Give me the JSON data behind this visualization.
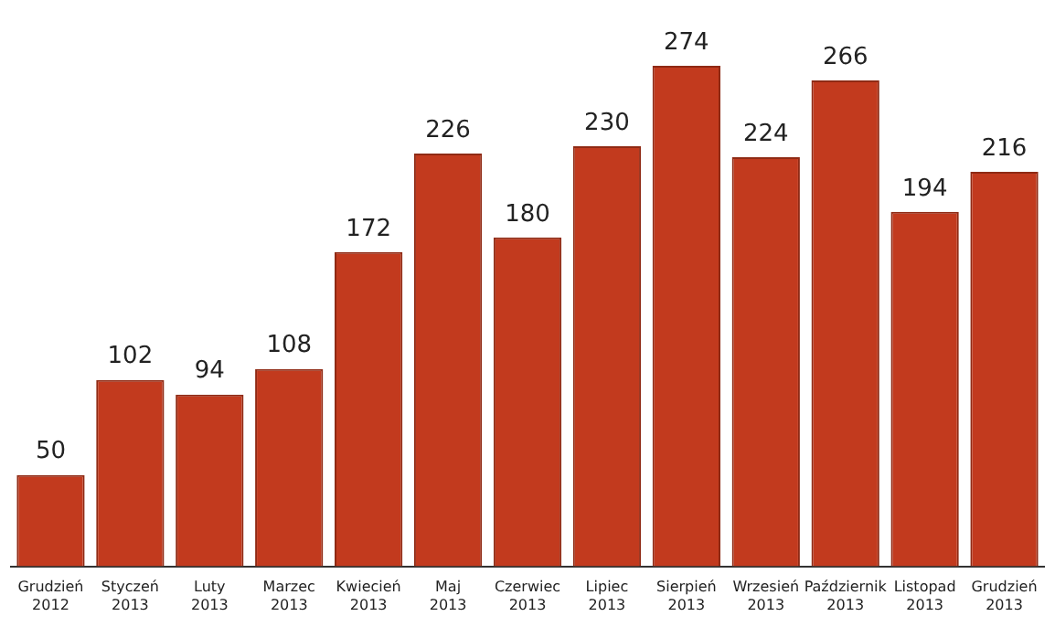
{
  "chart_data": {
    "type": "bar",
    "categories": [
      "Grudzień 2012",
      "Styczeń 2013",
      "Luty 2013",
      "Marzec 2013",
      "Kwiecień 2013",
      "Maj 2013",
      "Czerwiec 2013",
      "Lipiec 2013",
      "Sierpień 2013",
      "Wrzesień 2013",
      "Październik 2013",
      "Listopad 2013",
      "Grudzień 2013"
    ],
    "values": [
      50,
      102,
      94,
      108,
      172,
      226,
      180,
      230,
      274,
      224,
      266,
      194,
      216
    ],
    "color": "#c23a1e",
    "data_labels": true,
    "grid": false,
    "legend": false
  }
}
